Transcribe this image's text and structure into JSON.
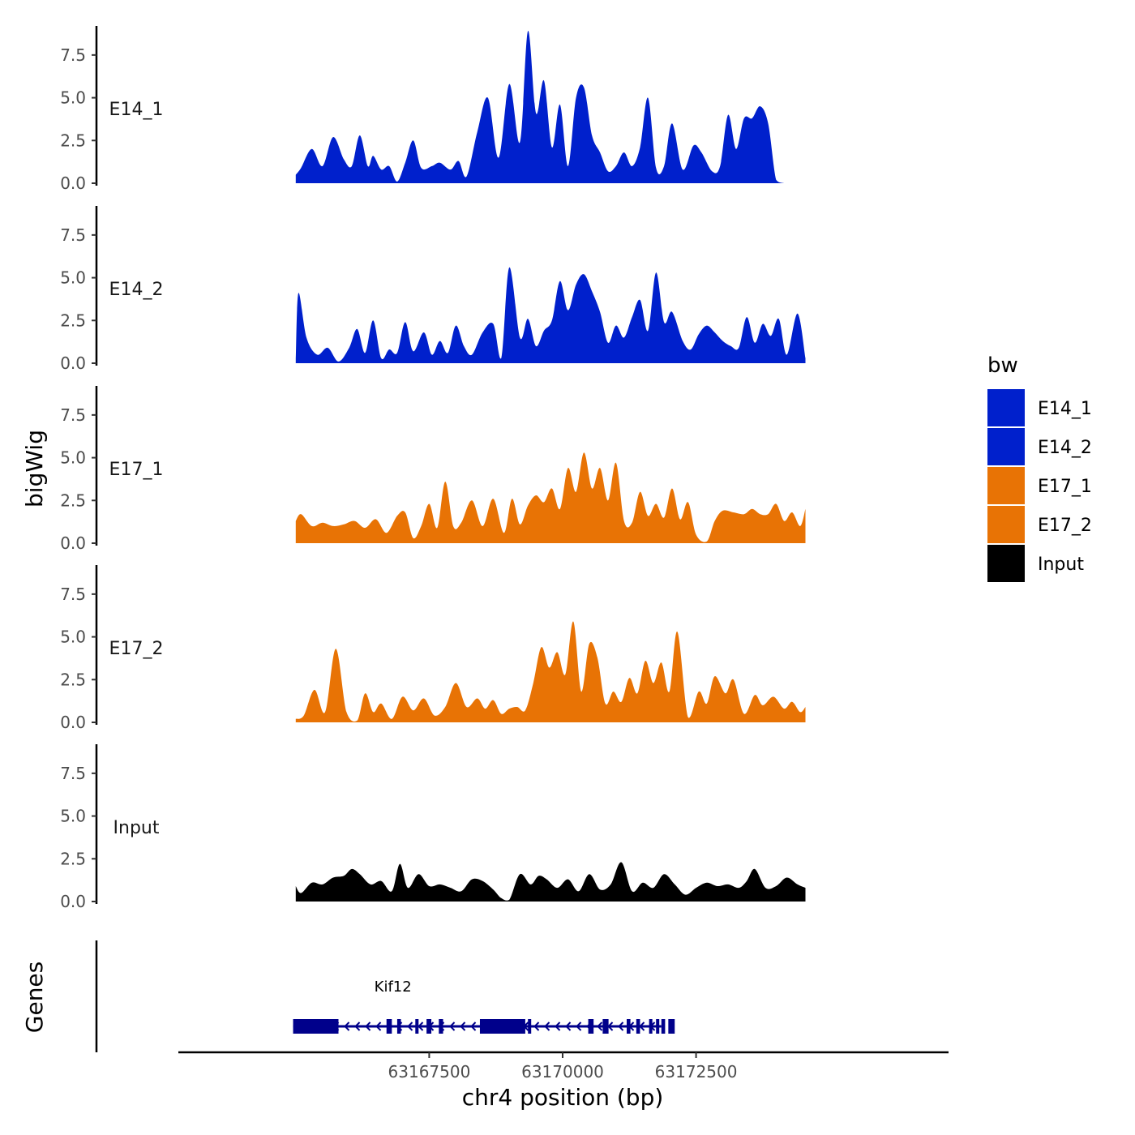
{
  "chart_data": {
    "type": "area",
    "ylabel": "bigWig",
    "xlabel": "chr4 position (bp)",
    "genes_label": "Genes",
    "ylim": [
      0,
      9.2
    ],
    "y_ticks": [
      0,
      2.5,
      5,
      7.5
    ],
    "y_tick_labels": [
      "0.0",
      "2.5",
      "5.0",
      "7.5"
    ],
    "xlim": [
      63162800,
      63177200
    ],
    "x_ticks": [
      63167500,
      63170000,
      63172500
    ],
    "x_tick_labels": [
      "63167500",
      "63170000",
      "63172500"
    ],
    "legend": {
      "title": "bw",
      "entries": [
        {
          "name": "E14_1",
          "color": "#0020CC"
        },
        {
          "name": "E14_2",
          "color": "#0020CC"
        },
        {
          "name": "E17_1",
          "color": "#E87305"
        },
        {
          "name": "E17_2",
          "color": "#E87305"
        },
        {
          "name": "Input",
          "color": "#000000"
        }
      ]
    },
    "series": [
      {
        "name": "E14_1",
        "color": "#0020CC",
        "x": [
          63165000,
          63165100,
          63165300,
          63165500,
          63165700,
          63165900,
          63166050,
          63166200,
          63166350,
          63166450,
          63166600,
          63166750,
          63166900,
          63167050,
          63167200,
          63167350,
          63167550,
          63167700,
          63167900,
          63168050,
          63168200,
          63168400,
          63168600,
          63168800,
          63169000,
          63169200,
          63169350,
          63169500,
          63169650,
          63169800,
          63169950,
          63170100,
          63170250,
          63170400,
          63170550,
          63170700,
          63170850,
          63171000,
          63171150,
          63171300,
          63171450,
          63171600,
          63171750,
          63171900,
          63172050,
          63172250,
          63172450,
          63172600,
          63172800,
          63172950,
          63173100,
          63173250,
          63173400,
          63173550,
          63173700,
          63173850,
          63174000,
          63174150,
          63174300,
          63174450,
          63174550
        ],
        "values": [
          0.5,
          0.9,
          2.0,
          1.0,
          2.7,
          1.4,
          1.0,
          2.8,
          1.0,
          1.6,
          0.8,
          1.0,
          0.1,
          1.2,
          2.5,
          0.9,
          1.0,
          1.2,
          0.8,
          1.3,
          0.4,
          3.0,
          5.0,
          1.5,
          5.8,
          2.4,
          8.9,
          4.1,
          6.0,
          2.1,
          4.6,
          1.0,
          5.0,
          5.6,
          2.8,
          1.8,
          0.7,
          1.0,
          1.8,
          1.0,
          2.1,
          5.0,
          0.9,
          1.0,
          3.5,
          0.8,
          2.2,
          1.8,
          0.7,
          1.0,
          4.0,
          2.0,
          3.8,
          3.8,
          4.5,
          3.5,
          0.2,
          0,
          0,
          0,
          0
        ]
      },
      {
        "name": "E14_2",
        "color": "#0020CC",
        "x": [
          63165000,
          63165050,
          63165200,
          63165400,
          63165600,
          63165800,
          63166000,
          63166150,
          63166300,
          63166450,
          63166600,
          63166750,
          63166900,
          63167050,
          63167200,
          63167400,
          63167550,
          63167700,
          63167850,
          63168000,
          63168150,
          63168300,
          63168500,
          63168700,
          63168850,
          63169000,
          63169200,
          63169350,
          63169500,
          63169650,
          63169800,
          63169950,
          63170100,
          63170250,
          63170400,
          63170550,
          63170700,
          63170850,
          63171000,
          63171150,
          63171300,
          63171450,
          63171600,
          63171750,
          63171900,
          63172050,
          63172250,
          63172400,
          63172550,
          63172700,
          63172850,
          63173000,
          63173150,
          63173300,
          63173450,
          63173600,
          63173750,
          63173900,
          63174050,
          63174200,
          63174400,
          63174550
        ],
        "values": [
          0.2,
          4.1,
          1.5,
          0.5,
          0.9,
          0.1,
          0.9,
          2.0,
          0.6,
          2.5,
          0.3,
          0.8,
          0.6,
          2.4,
          0.7,
          1.8,
          0.5,
          1.3,
          0.6,
          2.2,
          1.0,
          0.5,
          1.8,
          2.3,
          0.3,
          5.6,
          1.5,
          2.6,
          1.0,
          1.9,
          2.5,
          4.8,
          3.1,
          4.6,
          5.2,
          4.2,
          3.0,
          1.2,
          2.2,
          1.5,
          2.7,
          3.7,
          1.9,
          5.3,
          2.4,
          3.0,
          1.3,
          0.8,
          1.7,
          2.2,
          1.8,
          1.3,
          1.0,
          0.9,
          2.7,
          1.2,
          2.3,
          1.6,
          2.6,
          0.5,
          2.9,
          0.3
        ]
      },
      {
        "name": "E17_1",
        "color": "#E87305",
        "x": [
          63165000,
          63165100,
          63165300,
          63165500,
          63165700,
          63165900,
          63166100,
          63166300,
          63166500,
          63166700,
          63166900,
          63167050,
          63167200,
          63167350,
          63167500,
          63167650,
          63167800,
          63167950,
          63168100,
          63168300,
          63168500,
          63168700,
          63168900,
          63169050,
          63169200,
          63169350,
          63169500,
          63169650,
          63169800,
          63169950,
          63170100,
          63170250,
          63170400,
          63170550,
          63170700,
          63170850,
          63171000,
          63171150,
          63171300,
          63171450,
          63171600,
          63171750,
          63171900,
          63172050,
          63172200,
          63172350,
          63172500,
          63172700,
          63172850,
          63173000,
          63173200,
          63173400,
          63173550,
          63173700,
          63173850,
          63174000,
          63174150,
          63174300,
          63174450,
          63174550
        ],
        "values": [
          1.3,
          1.7,
          1.0,
          1.2,
          1.0,
          1.1,
          1.3,
          0.9,
          1.4,
          0.6,
          1.6,
          1.8,
          0.3,
          1.0,
          2.3,
          0.9,
          3.6,
          1.0,
          1.2,
          2.5,
          1.0,
          2.6,
          0.6,
          2.6,
          1.1,
          2.2,
          2.8,
          2.4,
          3.2,
          2.0,
          4.4,
          3.0,
          5.3,
          3.2,
          4.4,
          2.5,
          4.7,
          1.3,
          1.2,
          3.0,
          1.6,
          2.3,
          1.5,
          3.2,
          1.4,
          2.4,
          0.5,
          0.1,
          1.3,
          1.9,
          1.8,
          1.7,
          2.0,
          1.7,
          1.7,
          2.3,
          1.3,
          1.8,
          1.0,
          2.0
        ]
      },
      {
        "name": "E17_2",
        "color": "#E87305",
        "x": [
          63165000,
          63165150,
          63165350,
          63165550,
          63165750,
          63165950,
          63166150,
          63166300,
          63166450,
          63166600,
          63166800,
          63167000,
          63167200,
          63167400,
          63167600,
          63167800,
          63168000,
          63168200,
          63168400,
          63168550,
          63168700,
          63168850,
          63169000,
          63169150,
          63169300,
          63169450,
          63169600,
          63169750,
          63169900,
          63170050,
          63170200,
          63170350,
          63170500,
          63170650,
          63170800,
          63170950,
          63171100,
          63171250,
          63171400,
          63171550,
          63171700,
          63171850,
          63172000,
          63172150,
          63172350,
          63172550,
          63172700,
          63172850,
          63173050,
          63173200,
          63173400,
          63173600,
          63173750,
          63173950,
          63174150,
          63174300,
          63174450,
          63174550
        ],
        "values": [
          0.2,
          0.4,
          1.9,
          0.6,
          4.3,
          0.6,
          0.1,
          1.7,
          0.6,
          1.1,
          0.2,
          1.5,
          0.7,
          1.4,
          0.4,
          0.9,
          2.3,
          0.9,
          1.4,
          0.8,
          1.3,
          0.5,
          0.8,
          0.9,
          0.7,
          2.3,
          4.4,
          3.2,
          4.1,
          2.8,
          5.9,
          1.8,
          4.6,
          3.8,
          1.1,
          1.8,
          1.2,
          2.6,
          1.7,
          3.6,
          2.3,
          3.5,
          1.8,
          5.3,
          0.3,
          1.8,
          1.1,
          2.7,
          1.7,
          2.5,
          0.5,
          1.6,
          1.0,
          1.5,
          0.8,
          1.2,
          0.6,
          0.9
        ]
      },
      {
        "name": "Input",
        "color": "#000000",
        "x": [
          63165000,
          63165100,
          63165300,
          63165500,
          63165700,
          63165900,
          63166050,
          63166200,
          63166400,
          63166600,
          63166800,
          63166950,
          63167100,
          63167300,
          63167500,
          63167700,
          63167900,
          63168100,
          63168300,
          63168500,
          63168700,
          63168850,
          63169000,
          63169200,
          63169400,
          63169550,
          63169700,
          63169900,
          63170100,
          63170300,
          63170500,
          63170700,
          63170900,
          63171100,
          63171300,
          63171500,
          63171700,
          63171900,
          63172100,
          63172300,
          63172500,
          63172700,
          63172900,
          63173100,
          63173300,
          63173450,
          63173600,
          63173800,
          63174000,
          63174200,
          63174400,
          63174550
        ],
        "values": [
          0.9,
          0.5,
          1.1,
          1.0,
          1.4,
          1.5,
          1.9,
          1.6,
          1.0,
          1.2,
          0.6,
          2.2,
          0.8,
          1.6,
          0.9,
          1.0,
          0.8,
          0.6,
          1.3,
          1.2,
          0.7,
          0.2,
          0.1,
          1.6,
          1.0,
          1.5,
          1.3,
          0.8,
          1.3,
          0.6,
          1.6,
          0.7,
          1.0,
          2.3,
          0.6,
          1.1,
          0.8,
          1.6,
          1.0,
          0.4,
          0.8,
          1.1,
          0.9,
          1.0,
          0.8,
          1.2,
          1.9,
          0.8,
          0.9,
          1.4,
          1.0,
          0.8
        ]
      }
    ],
    "gene": {
      "name": "Kif12",
      "start": 63164950,
      "end": 63171850,
      "strand": "-",
      "exons": [
        [
          63164950,
          63165800
        ],
        [
          63166700,
          63166800
        ],
        [
          63166900,
          63166970
        ],
        [
          63167240,
          63167300
        ],
        [
          63167450,
          63167540
        ],
        [
          63167680,
          63167760
        ],
        [
          63168450,
          63169300
        ],
        [
          63169350,
          63169400
        ],
        [
          63170480,
          63170580
        ],
        [
          63170750,
          63170860
        ],
        [
          63171200,
          63171270
        ],
        [
          63171380,
          63171450
        ],
        [
          63171620,
          63171680
        ],
        [
          63171750,
          63171790
        ],
        [
          63171850,
          63171920
        ],
        [
          63171980,
          63172100
        ]
      ]
    }
  }
}
